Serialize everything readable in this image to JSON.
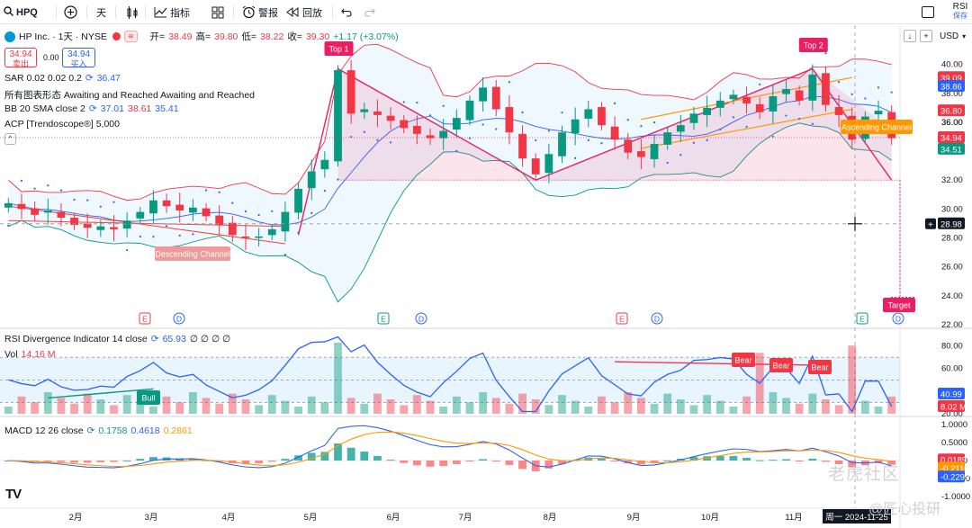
{
  "toolbar": {
    "symbol": "HPQ",
    "interval": "天",
    "indicators_label": "指标",
    "alert_label": "警报",
    "replay_label": "回放",
    "rsi_label": "RSI",
    "save_label": "保存"
  },
  "header": {
    "name": "HP Inc. · 1天 · NYSE",
    "open_label": "开=",
    "open": "38.49",
    "high_label": "高=",
    "high": "39.80",
    "low_label": "低=",
    "low": "38.22",
    "close_label": "收=",
    "close": "39.30",
    "change": "+1.17 (+3.07%)",
    "sell_price": "34.94",
    "sell_label": "卖出",
    "spread": "0.00",
    "buy_price": "34.94",
    "buy_label": "买入",
    "currency": "USD"
  },
  "studies": {
    "sar": "SAR 0.02 0.02 0.2",
    "sar_value": "36.47",
    "patterns": "所有图表形态 Awaiting and Reached Awaiting and Reached",
    "bb": "BB 20 SMA close 2",
    "bb_mid": "37.01",
    "bb_up": "38.61",
    "bb_low": "35.41",
    "acp": "ACP [Trendoscope®] 5,000",
    "rsi": "RSI Divergence Indicator 14 close",
    "rsi_value": "65.93",
    "rsi_zeros": "∅ ∅ ∅ ∅",
    "vol": "Vol",
    "vol_value": "14.16 M",
    "macd": "MACD 12 26 close",
    "macd_hist": "0.1758",
    "macd_line": "0.4618",
    "macd_signal": "0.2861"
  },
  "colors": {
    "up": "#089981",
    "down": "#f23645",
    "accent": "#2962ff",
    "label_pink": "#e91e63",
    "bb_band": "#2196f3"
  },
  "chart_data": [
    {
      "type": "candlestick",
      "title": "HPQ",
      "y_range": [
        22.0,
        40.6
      ],
      "y_ticks": [
        "40.00",
        "38.00",
        "36.00",
        "34.00",
        "32.00",
        "30.00",
        "28.00",
        "26.00",
        "24.00",
        "22.00"
      ],
      "x_ticks": [
        "2月",
        "3月",
        "4月",
        "5月",
        "6月",
        "7月",
        "8月",
        "9月",
        "10月",
        "11月"
      ],
      "closes": [
        30.4,
        30.0,
        29.6,
        29.9,
        29.4,
        28.9,
        28.7,
        28.8,
        28.6,
        29.2,
        29.8,
        30.6,
        30.2,
        29.9,
        30.1,
        29.5,
        28.9,
        28.2,
        28.0,
        28.1,
        28.6,
        29.8,
        31.4,
        32.6,
        33.4,
        39.6,
        36.6,
        36.9,
        36.5,
        36.1,
        35.6,
        35.2,
        34.9,
        35.4,
        36.3,
        37.5,
        38.4,
        36.9,
        35.3,
        33.5,
        32.4,
        33.8,
        35.3,
        36.2,
        36.9,
        35.8,
        34.8,
        33.9,
        33.6,
        34.5,
        35.3,
        35.8,
        36.6,
        37.0,
        37.5,
        37.9,
        37.3,
        36.7,
        37.8,
        38.3,
        37.5,
        39.3,
        37.2,
        36.5,
        34.8,
        36.4,
        36.8,
        34.9
      ],
      "price_labels": {
        "last_red": "39.09",
        "last_blue": "38.86",
        "bb_up": "36.80",
        "price": "36.00",
        "current": "34.94",
        "bb_low": "34.51",
        "crosshair": "28.98"
      },
      "pattern_labels": [
        "Top 1",
        "Top 2",
        "Target",
        "Descending Channel",
        "Ascending Channel"
      ],
      "events": [
        "E",
        "D",
        "E",
        "D",
        "E",
        "D",
        "E",
        "D"
      ]
    },
    {
      "type": "line",
      "title": "RSI Divergence Indicator 14",
      "y_range": [
        20,
        90
      ],
      "y_ticks": [
        "80.00",
        "60.00",
        "40.00",
        "20.00"
      ],
      "last_label": "40.99",
      "vol_label": "8.02 M",
      "divergence_labels": [
        "Bull",
        "Bear",
        "Bear",
        "Bear"
      ]
    },
    {
      "type": "bar",
      "title": "MACD 12 26 close",
      "y_ticks": [
        "1.0000",
        "0.5000",
        "0.0000",
        "-0.5000",
        "-1.0000"
      ],
      "last_labels": [
        "0.0189",
        "-0.2110",
        "-0.2299"
      ]
    }
  ],
  "footer": {
    "date_label": "周一 2024-11-25",
    "watermark": "老虎社区",
    "watermark2": "@匠心投研"
  }
}
